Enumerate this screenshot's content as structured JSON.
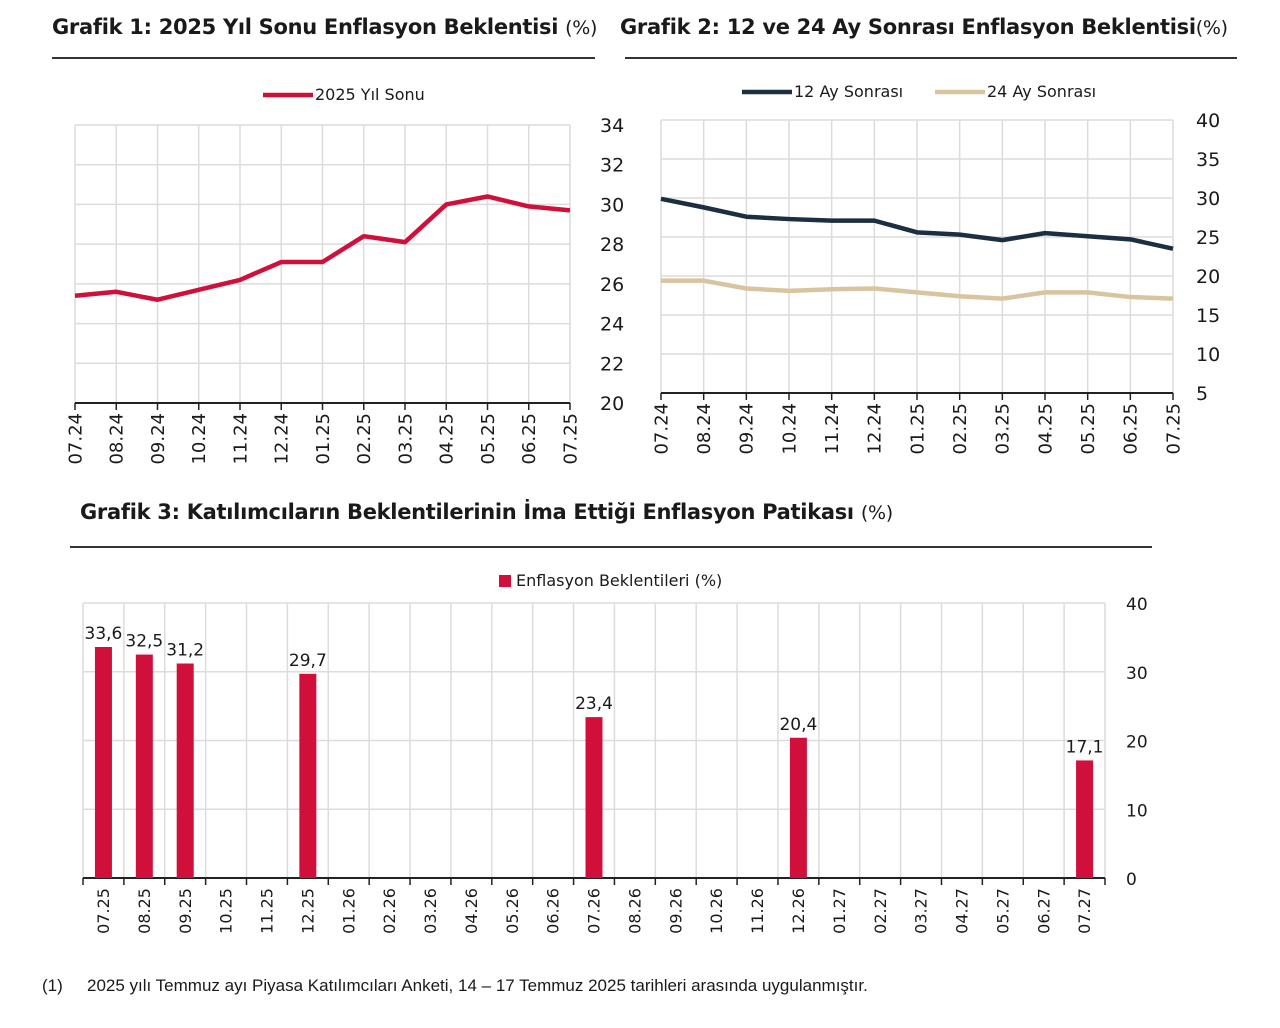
{
  "chart_data": [
    {
      "type": "line",
      "title": "Grafik 1: 2025 Yıl Sonu Enflasyon Beklentisi",
      "unit": "(%)",
      "categories": [
        "07.24",
        "08.24",
        "09.24",
        "10.24",
        "11.24",
        "12.24",
        "01.25",
        "02.25",
        "03.25",
        "04.25",
        "05.25",
        "06.25",
        "07.25"
      ],
      "series": [
        {
          "name": "2025 Yıl Sonu",
          "color": "#d0103a",
          "values": [
            25.4,
            25.6,
            25.2,
            25.7,
            26.2,
            27.1,
            27.1,
            28.4,
            28.1,
            30.0,
            30.4,
            29.9,
            29.7
          ]
        }
      ],
      "ylim": [
        20,
        34
      ],
      "yticks": [
        "34",
        "32",
        "30",
        "28",
        "26",
        "24",
        "22",
        "20"
      ],
      "y_axis_side": "right",
      "grid": true,
      "legend": "top"
    },
    {
      "type": "line",
      "title": "Grafik 2: 12 ve 24 Ay Sonrası Enflasyon Beklentisi",
      "unit": "(%)",
      "categories": [
        "07.24",
        "08.24",
        "09.24",
        "10.24",
        "11.24",
        "12.24",
        "01.25",
        "02.25",
        "03.25",
        "04.25",
        "05.25",
        "06.25",
        "07.25"
      ],
      "series": [
        {
          "name": "12 Ay Sonrası",
          "color": "#1c2e42",
          "values": [
            29.9,
            28.8,
            27.6,
            27.3,
            27.1,
            27.1,
            25.6,
            25.3,
            24.6,
            25.5,
            25.1,
            24.7,
            23.5
          ]
        },
        {
          "name": "24 Ay Sonrası",
          "color": "#d9c4a0",
          "values": [
            19.4,
            19.4,
            18.4,
            18.1,
            18.3,
            18.4,
            17.9,
            17.4,
            17.1,
            17.9,
            17.9,
            17.3,
            17.1
          ]
        }
      ],
      "ylim": [
        5,
        40
      ],
      "yticks": [
        "40",
        "35",
        "30",
        "25",
        "20",
        "15",
        "10",
        "5"
      ],
      "y_axis_side": "right",
      "grid": true,
      "legend": "top"
    },
    {
      "type": "bar",
      "title": "Grafik 3: Katılımcıların Beklentilerinin İma Ettiği Enflasyon Patikası",
      "unit": "(%)",
      "categories": [
        "07.25",
        "08.25",
        "09.25",
        "10.25",
        "11.25",
        "12.25",
        "01.26",
        "02.26",
        "03.26",
        "04.26",
        "05.26",
        "06.26",
        "07.26",
        "08.26",
        "09.26",
        "10.26",
        "11.26",
        "12.26",
        "01.27",
        "02.27",
        "03.27",
        "04.27",
        "05.27",
        "06.27",
        "07.27"
      ],
      "series": [
        {
          "name": "Enflasyon Beklentileri (%)",
          "color": "#d0103a",
          "values": [
            33.6,
            32.5,
            31.2,
            null,
            null,
            29.7,
            null,
            null,
            null,
            null,
            null,
            null,
            23.4,
            null,
            null,
            null,
            null,
            20.4,
            null,
            null,
            null,
            null,
            null,
            null,
            17.1
          ],
          "labels": [
            "33,6",
            "32,5",
            "31,2",
            null,
            null,
            "29,7",
            null,
            null,
            null,
            null,
            null,
            null,
            "23,4",
            null,
            null,
            null,
            null,
            "20,4",
            null,
            null,
            null,
            null,
            null,
            null,
            "17,1"
          ]
        }
      ],
      "ylim": [
        0,
        40
      ],
      "yticks": [
        "40",
        "30",
        "20",
        "10",
        "0"
      ],
      "y_axis_side": "right",
      "grid": true,
      "legend": "top"
    }
  ],
  "footnote": {
    "marker": "(1)",
    "text": "2025 yılı Temmuz ayı Piyasa Katılımcıları Anketi, 14 – 17 Temmuz 2025 tarihleri arasında uygulanmıştır."
  }
}
